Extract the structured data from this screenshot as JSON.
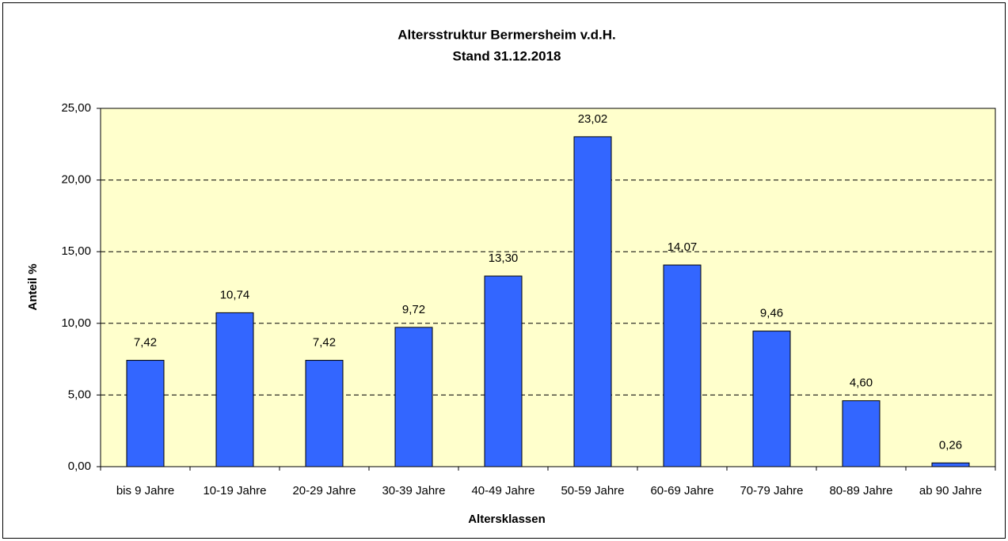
{
  "chart_data": {
    "type": "bar",
    "title": "Altersstruktur Bermersheim v.d.H.",
    "subtitle": "Stand 31.12.2018",
    "x_label": "Altersklassen",
    "y_label": "Anteil %",
    "categories": [
      "bis 9 Jahre",
      "10-19 Jahre",
      "20-29 Jahre",
      "30-39 Jahre",
      "40-49 Jahre",
      "50-59 Jahre",
      "60-69 Jahre",
      "70-79 Jahre",
      "80-89 Jahre",
      "ab 90 Jahre"
    ],
    "values": [
      7.42,
      10.74,
      7.42,
      9.72,
      13.3,
      23.02,
      14.07,
      9.46,
      4.6,
      0.26
    ],
    "value_labels": [
      "7,42",
      "10,74",
      "7,42",
      "9,72",
      "13,30",
      "23,02",
      "14,07",
      "9,46",
      "4,60",
      "0,26"
    ],
    "color": "#3366ff",
    "ylim": [
      0,
      25
    ],
    "yticks": [
      {
        "value": 0,
        "label": "0,00"
      },
      {
        "value": 5,
        "label": "5,00"
      },
      {
        "value": 10,
        "label": "10,00"
      },
      {
        "value": 15,
        "label": "15,00"
      },
      {
        "value": 20,
        "label": "20,00"
      },
      {
        "value": 25,
        "label": "25,00"
      }
    ],
    "grid": true
  }
}
